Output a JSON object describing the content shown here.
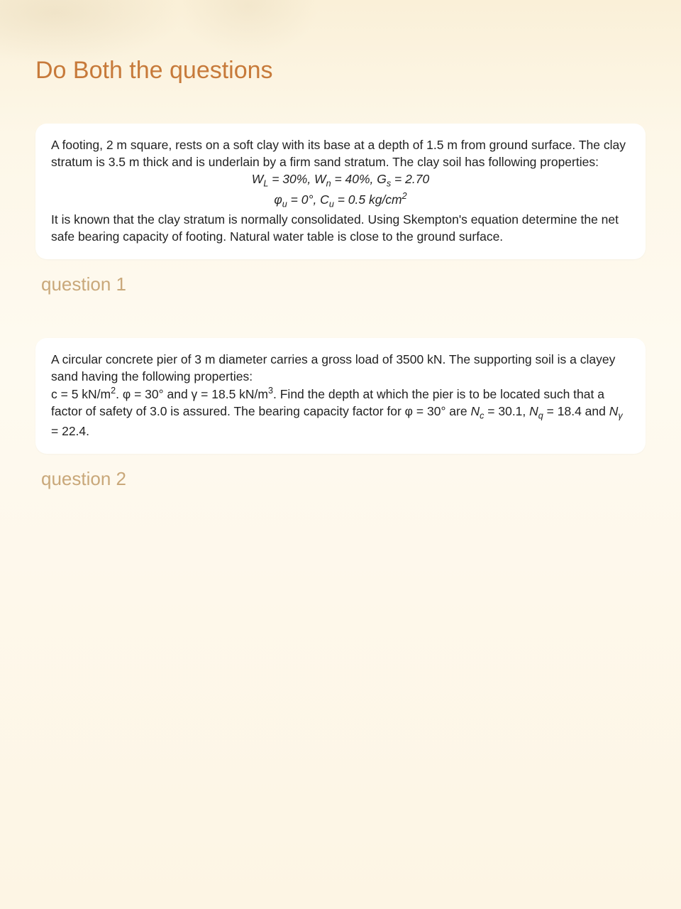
{
  "page": {
    "title": "Do Both the questions",
    "background_gradient": [
      "#faf0d8",
      "#fdf7e8",
      "#fefaf0",
      "#fdf5e4"
    ],
    "title_color": "#c77a3a",
    "title_fontsize": 34,
    "label_color": "#c9a87a",
    "label_fontsize": 26,
    "card_bg": "#ffffff",
    "card_radius": 16,
    "body_fontsize": 17.5,
    "text_color": "#222222"
  },
  "q1": {
    "para1": "A footing, 2 m square, rests on a soft clay with its base at a depth of 1.5 m from ground surface. The clay stratum is 3.5 m thick and is underlain by a firm sand stratum. The clay soil has following properties:",
    "eq_line1_html": "W<sub>L</sub> = 30%, W<sub>n</sub> = 40%, G<sub>s</sub> = 2.70",
    "eq_line2_html": "&phi;<sub>u</sub> = 0&deg;, C<sub>u</sub> = 0.5 kg/cm<sup>2</sup>",
    "para2": "It is known that the clay stratum is normally consolidated. Using Skempton's equation determine the net safe bearing capacity of footing. Natural water table is close to the ground surface.",
    "label": "question 1",
    "values": {
      "W_L_percent": 30,
      "W_n_percent": 40,
      "G_s": 2.7,
      "phi_u_deg": 0,
      "C_u_kg_per_cm2": 0.5,
      "footing_width_m": 2,
      "footing_depth_m": 1.5,
      "clay_thickness_m": 3.5
    }
  },
  "q2": {
    "para1": "A circular concrete pier of 3 m diameter carries a gross load of 3500 kN. The supporting soil is a clayey sand having the following properties:",
    "para2_html": "c = 5 kN/m<sup>2</sup>. &phi; = 30&deg; and &gamma; = 18.5 kN/m<sup>3</sup>. Find the depth at which the pier is to be located such that a factor of safety of 3.0 is assured. The bearing capacity factor for &phi; = 30&deg; are <span class=\"ital\">N<sub>c</sub></span> = 30.1, <span class=\"ital\">N<sub>q</sub></span> = 18.4 and <span class=\"ital\">N<sub>&gamma;</sub></span> = 22.4.",
    "label": "question 2",
    "values": {
      "pier_diameter_m": 3,
      "gross_load_kN": 3500,
      "c_kN_per_m2": 5,
      "phi_deg": 30,
      "gamma_kN_per_m3": 18.5,
      "factor_of_safety": 3.0,
      "N_c": 30.1,
      "N_q": 18.4,
      "N_gamma": 22.4
    }
  }
}
